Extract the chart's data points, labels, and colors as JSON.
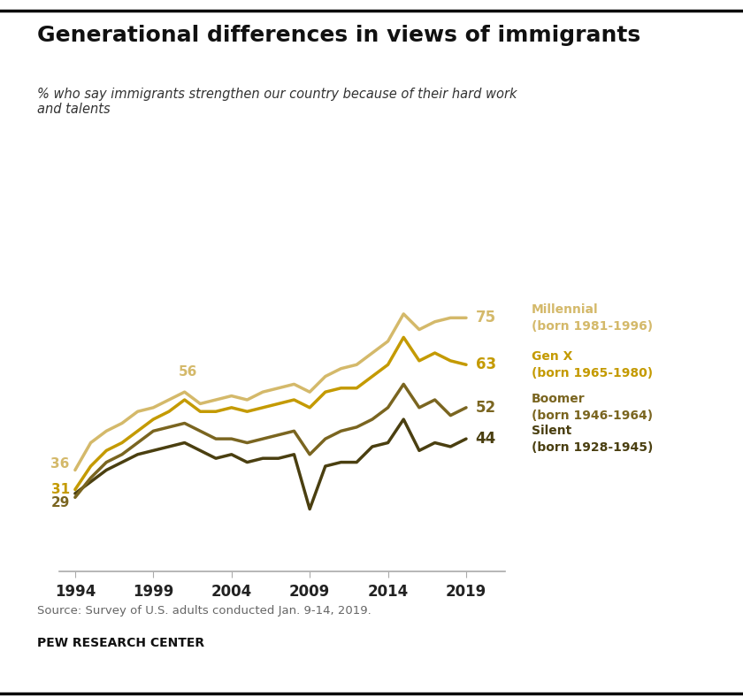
{
  "title": "Generational differences in views of immigrants",
  "subtitle": "% who say immigrants strengthen our country because of their hard work\nand talents",
  "source": "Source: Survey of U.S. adults conducted Jan. 9-14, 2019.",
  "credit": "PEW RESEARCH CENTER",
  "colors": {
    "millennial": "#D4B96A",
    "genx": "#C49A00",
    "boomer": "#7A6520",
    "silent": "#4A3F10"
  },
  "legend": {
    "millennial": [
      "Millennial",
      "(born 1981-1996)"
    ],
    "genx": [
      "Gen X",
      "(born 1965-1980)"
    ],
    "boomer": [
      "Boomer",
      "(born 1946-1964)"
    ],
    "silent": [
      "Silent",
      "(born 1928-1945)"
    ]
  },
  "end_labels": {
    "millennial": "75",
    "genx": "63",
    "boomer": "52",
    "silent": "44"
  },
  "start_labels": {
    "millennial": "36",
    "genx": "31",
    "boomer": "29"
  },
  "mid_label_year": 2001,
  "mid_label_value": 58,
  "mid_label_text": "56",
  "ylim": [
    10,
    85
  ],
  "xlim": [
    1993.0,
    2021.5
  ],
  "years_ticks": [
    1994,
    1999,
    2004,
    2009,
    2014,
    2019
  ],
  "millennial_years": [
    1994,
    1995,
    1996,
    1997,
    1998,
    1999,
    2000,
    2001,
    2002,
    2003,
    2004,
    2005,
    2006,
    2007,
    2008,
    2009,
    2010,
    2011,
    2012,
    2013,
    2014,
    2015,
    2016,
    2017,
    2018,
    2019
  ],
  "millennial_values": [
    36,
    43,
    46,
    48,
    51,
    52,
    54,
    56,
    53,
    54,
    55,
    54,
    56,
    57,
    58,
    56,
    60,
    62,
    63,
    66,
    69,
    76,
    72,
    74,
    75,
    75
  ],
  "genx_years": [
    1994,
    1995,
    1996,
    1997,
    1998,
    1999,
    2000,
    2001,
    2002,
    2003,
    2004,
    2005,
    2006,
    2007,
    2008,
    2009,
    2010,
    2011,
    2012,
    2013,
    2014,
    2015,
    2016,
    2017,
    2018,
    2019
  ],
  "genx_values": [
    31,
    37,
    41,
    43,
    46,
    49,
    51,
    54,
    51,
    51,
    52,
    51,
    52,
    53,
    54,
    52,
    56,
    57,
    57,
    60,
    63,
    70,
    64,
    66,
    64,
    63
  ],
  "boomer_years": [
    1994,
    1995,
    1996,
    1997,
    1998,
    1999,
    2000,
    2001,
    2002,
    2003,
    2004,
    2005,
    2006,
    2007,
    2008,
    2009,
    2010,
    2011,
    2012,
    2013,
    2014,
    2015,
    2016,
    2017,
    2018,
    2019
  ],
  "boomer_values": [
    29,
    34,
    38,
    40,
    43,
    46,
    47,
    48,
    46,
    44,
    44,
    43,
    44,
    45,
    46,
    40,
    44,
    46,
    47,
    49,
    52,
    58,
    52,
    54,
    50,
    52
  ],
  "silent_years": [
    1994,
    1995,
    1996,
    1997,
    1998,
    1999,
    2000,
    2001,
    2002,
    2003,
    2004,
    2005,
    2006,
    2007,
    2008,
    2009,
    2010,
    2011,
    2012,
    2013,
    2014,
    2015,
    2016,
    2017,
    2018,
    2019
  ],
  "silent_values": [
    30,
    33,
    36,
    38,
    40,
    41,
    42,
    43,
    41,
    39,
    40,
    38,
    39,
    39,
    40,
    26,
    37,
    38,
    38,
    42,
    43,
    49,
    41,
    43,
    42,
    44
  ]
}
